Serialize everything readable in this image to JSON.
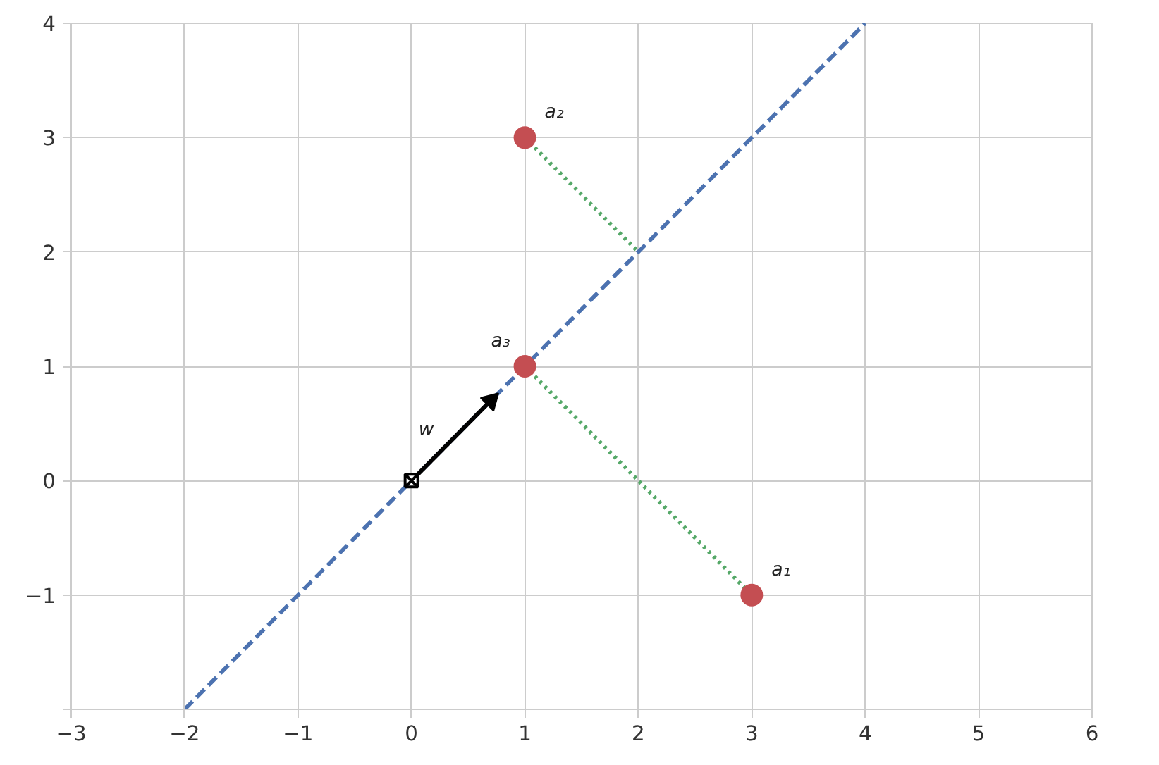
{
  "chart_data": {
    "type": "scatter",
    "series": [
      {
        "type": "line",
        "color": "#4c72b0",
        "line_style": "dashed",
        "marker": "none",
        "x": [
          -2,
          4
        ],
        "values": [
          -2,
          4
        ]
      },
      {
        "type": "line",
        "color": "#55a868",
        "line_style": "dotted",
        "marker": "none",
        "x": [
          1,
          2
        ],
        "values": [
          3,
          2
        ]
      },
      {
        "type": "line",
        "color": "#55a868",
        "line_style": "dotted",
        "marker": "none",
        "x": [
          1,
          3
        ],
        "values": [
          1,
          -1
        ]
      },
      {
        "name": "w",
        "type": "line",
        "color": "#000000",
        "line_style": "solid",
        "marker": "triangle",
        "x": [
          0,
          0.7
        ],
        "values": [
          0,
          0.7
        ]
      },
      {
        "color": "#000000",
        "marker": "cross",
        "x": [
          0
        ],
        "values": [
          0
        ]
      },
      {
        "name": "a₁",
        "color": "#c44e52",
        "marker": "circle",
        "x": [
          3
        ],
        "values": [
          -1
        ]
      },
      {
        "name": "a₂",
        "color": "#c44e52",
        "marker": "circle",
        "x": [
          1
        ],
        "values": [
          3
        ]
      },
      {
        "name": "a₃",
        "color": "#c44e52",
        "marker": "circle",
        "x": [
          1
        ],
        "values": [
          1
        ]
      }
    ],
    "xlim": [
      -3,
      6
    ],
    "xticks": [
      -3,
      -2,
      -1,
      0,
      1,
      2,
      3,
      4,
      5,
      6
    ],
    "ylim": [
      -2,
      4
    ],
    "yticks": [
      {
        "value": -2,
        "label": null
      },
      -1,
      0,
      1,
      2,
      3,
      4
    ],
    "grid": true,
    "legend": false
  }
}
